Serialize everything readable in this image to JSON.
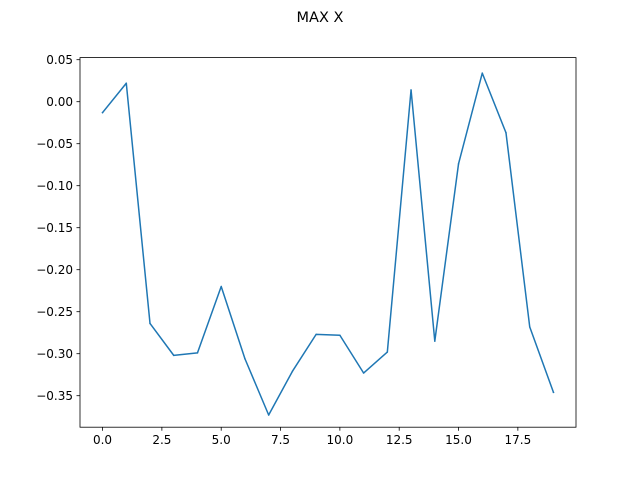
{
  "chart_data": {
    "type": "line",
    "title": "MAX X",
    "xlabel": "",
    "ylabel": "",
    "xlim": [
      -0.95,
      19.95
    ],
    "ylim": [
      -0.3875,
      0.0525
    ],
    "xticks": [
      0.0,
      2.5,
      5.0,
      7.5,
      10.0,
      12.5,
      15.0,
      17.5
    ],
    "xtick_labels": [
      "0.0",
      "2.5",
      "5.0",
      "7.5",
      "10.0",
      "12.5",
      "15.0",
      "17.5"
    ],
    "yticks": [
      0.05,
      0.0,
      -0.05,
      -0.1,
      -0.15,
      -0.2,
      -0.25,
      -0.3,
      -0.35
    ],
    "ytick_labels": [
      "0.05",
      "0.00",
      "−0.05",
      "−0.10",
      "−0.15",
      "−0.20",
      "−0.25",
      "−0.30",
      "−0.35"
    ],
    "grid": false,
    "series": [
      {
        "color": "#1f77b4",
        "x": [
          0,
          1,
          2,
          3,
          4,
          5,
          6,
          7,
          8,
          9,
          10,
          11,
          12,
          13,
          14,
          15,
          16,
          17,
          18,
          19
        ],
        "y": [
          -0.013,
          0.022,
          -0.264,
          -0.302,
          -0.299,
          -0.22,
          -0.306,
          -0.373,
          -0.321,
          -0.277,
          -0.278,
          -0.323,
          -0.298,
          0.014,
          -0.285,
          -0.074,
          0.034,
          -0.037,
          -0.268,
          -0.346
        ]
      }
    ]
  }
}
